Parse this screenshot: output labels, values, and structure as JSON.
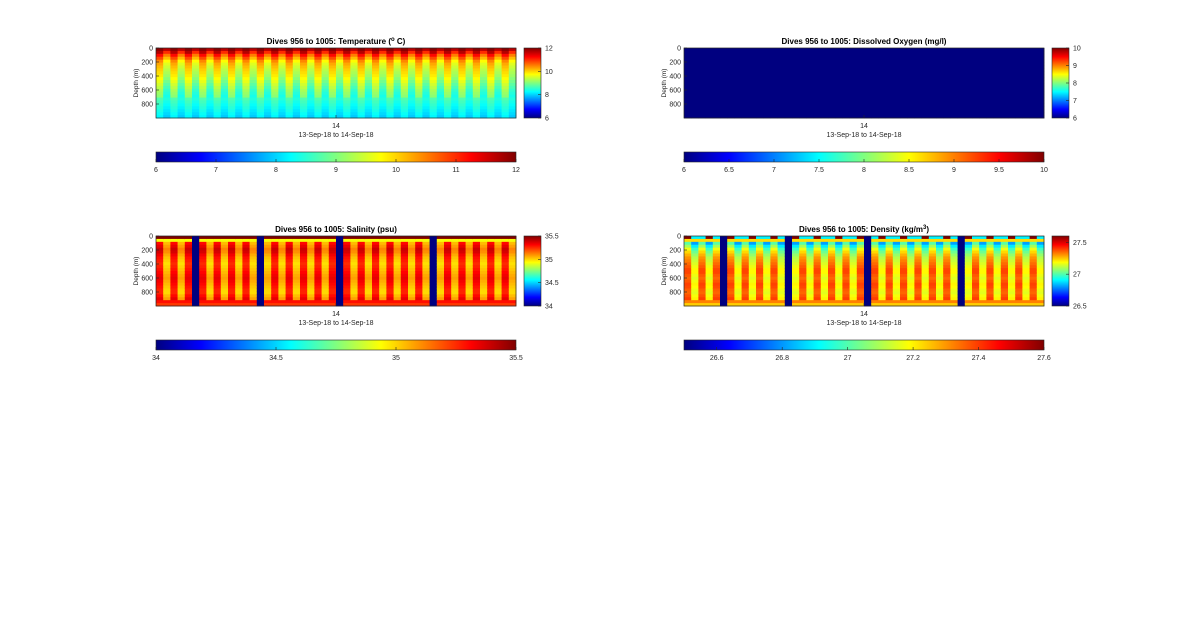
{
  "figure": {
    "background": "#ffffff",
    "colormap": "jet"
  },
  "chart_data": [
    {
      "type": "heatmap",
      "title": "Dives 956 to 1005: Temperature (",
      "title_sup": "o",
      "title_end": " C)",
      "ylabel": "Depth (m)",
      "y_ticks": [
        "0",
        "200",
        "400",
        "600",
        "800"
      ],
      "y_tick_values": [
        0,
        200,
        400,
        600,
        800
      ],
      "ylim": [
        0,
        1000
      ],
      "y_reversed": true,
      "x_tick_label": "14",
      "xlabel": "13-Sep-18 to 14-Sep-18",
      "clim": [
        6,
        12
      ],
      "colorbar_ticks": [
        "6",
        "8",
        "10",
        "12"
      ],
      "colorbar_tick_values": [
        6,
        8,
        10,
        12
      ],
      "horizontal_colorbar_ticks": [
        "6",
        "7",
        "8",
        "9",
        "10",
        "11",
        "12"
      ],
      "horizontal_colorbar_tick_values": [
        6,
        7,
        8,
        9,
        10,
        11,
        12
      ],
      "pattern": "temperature",
      "dives": 50,
      "gap_dives": [],
      "profile_depth_values": [
        0,
        100,
        200,
        300,
        400,
        500,
        600,
        700,
        800,
        900,
        1000
      ],
      "profile_values": [
        12,
        10.8,
        9.9,
        9.6,
        9.4,
        9.1,
        8.8,
        8.6,
        8.4,
        8.2,
        8.0
      ]
    },
    {
      "type": "heatmap",
      "title": "Dives 956 to 1005: Dissolved Oxygen (mg/l)",
      "ylabel": "Depth (m)",
      "y_ticks": [
        "0",
        "200",
        "400",
        "600",
        "800"
      ],
      "y_tick_values": [
        0,
        200,
        400,
        600,
        800
      ],
      "ylim": [
        0,
        1000
      ],
      "y_reversed": true,
      "x_tick_label": "14",
      "xlabel": "13-Sep-18 to 14-Sep-18",
      "clim": [
        6,
        10
      ],
      "colorbar_ticks": [
        "6",
        "7",
        "8",
        "9",
        "10"
      ],
      "colorbar_tick_values": [
        6,
        7,
        8,
        9,
        10
      ],
      "horizontal_colorbar_ticks": [
        "6",
        "6.5",
        "7",
        "7.5",
        "8",
        "8.5",
        "9",
        "9.5",
        "10"
      ],
      "horizontal_colorbar_tick_values": [
        6,
        6.5,
        7,
        7.5,
        8,
        8.5,
        9,
        9.5,
        10
      ],
      "pattern": "uniform",
      "uniform_value": 6,
      "dives": 50,
      "gap_dives": []
    },
    {
      "type": "heatmap",
      "title": "Dives 956 to 1005: Salinity (psu)",
      "ylabel": "Depth (m)",
      "y_ticks": [
        "0",
        "200",
        "400",
        "600",
        "800"
      ],
      "y_tick_values": [
        0,
        200,
        400,
        600,
        800
      ],
      "ylim": [
        0,
        1000
      ],
      "y_reversed": true,
      "x_tick_label": "14",
      "xlabel": "13-Sep-18 to 14-Sep-18",
      "clim": [
        34,
        35.5
      ],
      "colorbar_ticks": [
        "34",
        "34.5",
        "35",
        "35.5"
      ],
      "colorbar_tick_values": [
        34,
        34.5,
        35,
        35.5
      ],
      "horizontal_colorbar_ticks": [
        "34",
        "34.5",
        "35",
        "35.5"
      ],
      "horizontal_colorbar_tick_values": [
        34,
        34.5,
        35,
        35.5
      ],
      "pattern": "salinity",
      "dives": 50,
      "gap_dives": [
        5,
        14,
        25,
        38
      ],
      "profile_depth_values": [
        0,
        50,
        100,
        200,
        300,
        400,
        500,
        600,
        700,
        800,
        900,
        1000
      ],
      "profile_values": [
        35.5,
        34.8,
        35.3,
        35.4,
        35.3,
        35.25,
        35.3,
        35.35,
        35.3,
        35.25,
        35.35,
        35.2
      ]
    },
    {
      "type": "heatmap",
      "title": "Dives 956 to 1005: Density (kg/m",
      "title_sup": "3",
      "title_end": ")",
      "ylabel": "Depth (m)",
      "y_ticks": [
        "0",
        "200",
        "400",
        "600",
        "800"
      ],
      "y_tick_values": [
        0,
        200,
        400,
        600,
        800
      ],
      "ylim": [
        0,
        1000
      ],
      "y_reversed": true,
      "x_tick_label": "14",
      "xlabel": "13-Sep-18 to 14-Sep-18",
      "clim": [
        26.5,
        27.6
      ],
      "colorbar_ticks": [
        "26.5",
        "27",
        "27.5"
      ],
      "colorbar_tick_values": [
        26.5,
        27,
        27.5
      ],
      "horizontal_colorbar_ticks": [
        "26.6",
        "26.8",
        "27",
        "27.2",
        "27.4",
        "27.6"
      ],
      "horizontal_colorbar_tick_values": [
        26.6,
        26.8,
        27,
        27.2,
        27.4,
        27.6
      ],
      "horizontal_clim": [
        26.5,
        27.6
      ],
      "pattern": "density",
      "dives": 50,
      "gap_dives": [
        5,
        14,
        25,
        38
      ],
      "profile_depth_values": [
        0,
        50,
        100,
        200,
        300,
        400,
        500,
        600,
        700,
        800,
        900,
        1000
      ],
      "profile_values": [
        26.6,
        27.3,
        27.0,
        27.2,
        27.3,
        27.35,
        27.4,
        27.35,
        27.4,
        27.35,
        27.4,
        27.2
      ]
    }
  ]
}
